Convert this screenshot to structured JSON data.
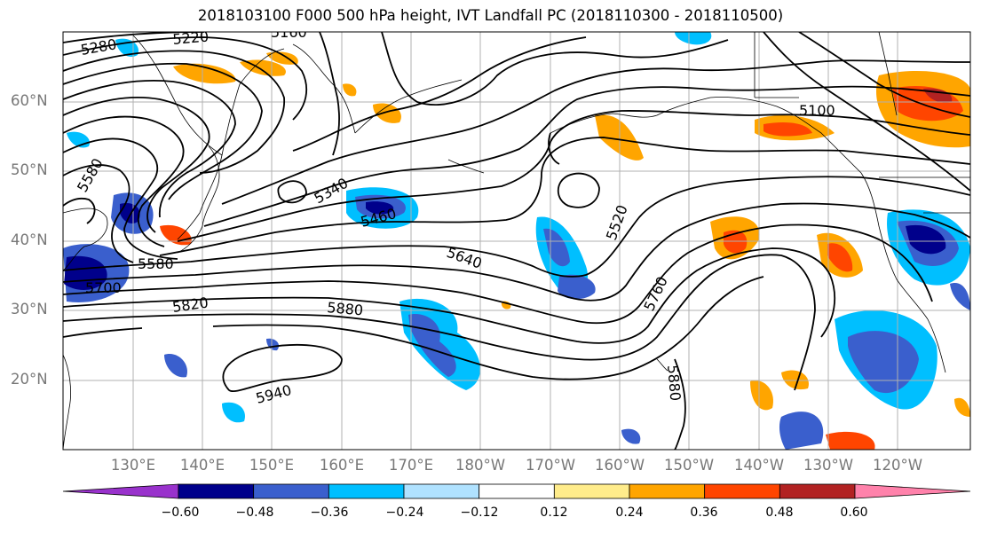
{
  "title": "2018103100 F000 500 hPa height, IVT Landfall PC (2018110300 - 2018110500)",
  "lat_labels": [
    "60°N",
    "50°N",
    "40°N",
    "30°N",
    "20°N"
  ],
  "lon_labels": [
    "130°E",
    "140°E",
    "150°E",
    "160°E",
    "170°E",
    "180°W",
    "170°W",
    "160°W",
    "150°W",
    "140°W",
    "130°W",
    "120°W"
  ],
  "contour_labels": [
    "5280",
    "5220",
    "5160",
    "5580",
    "5340",
    "5460",
    "5520",
    "5580",
    "5640",
    "5760",
    "5820",
    "5880",
    "5880",
    "5940",
    "5100",
    "5700"
  ],
  "colorbar": {
    "tick_labels": [
      "−0.60",
      "−0.48",
      "−0.36",
      "−0.24",
      "−0.12",
      "0.12",
      "0.24",
      "0.36",
      "0.48",
      "0.60"
    ],
    "colors": [
      "#9932cc",
      "#00008b",
      "#3a5fcd",
      "#00bfff",
      "#b0e2ff",
      "#ffffff",
      "#ffec8b",
      "#ffa500",
      "#ff4500",
      "#b22222",
      "#ff82ab"
    ]
  }
}
